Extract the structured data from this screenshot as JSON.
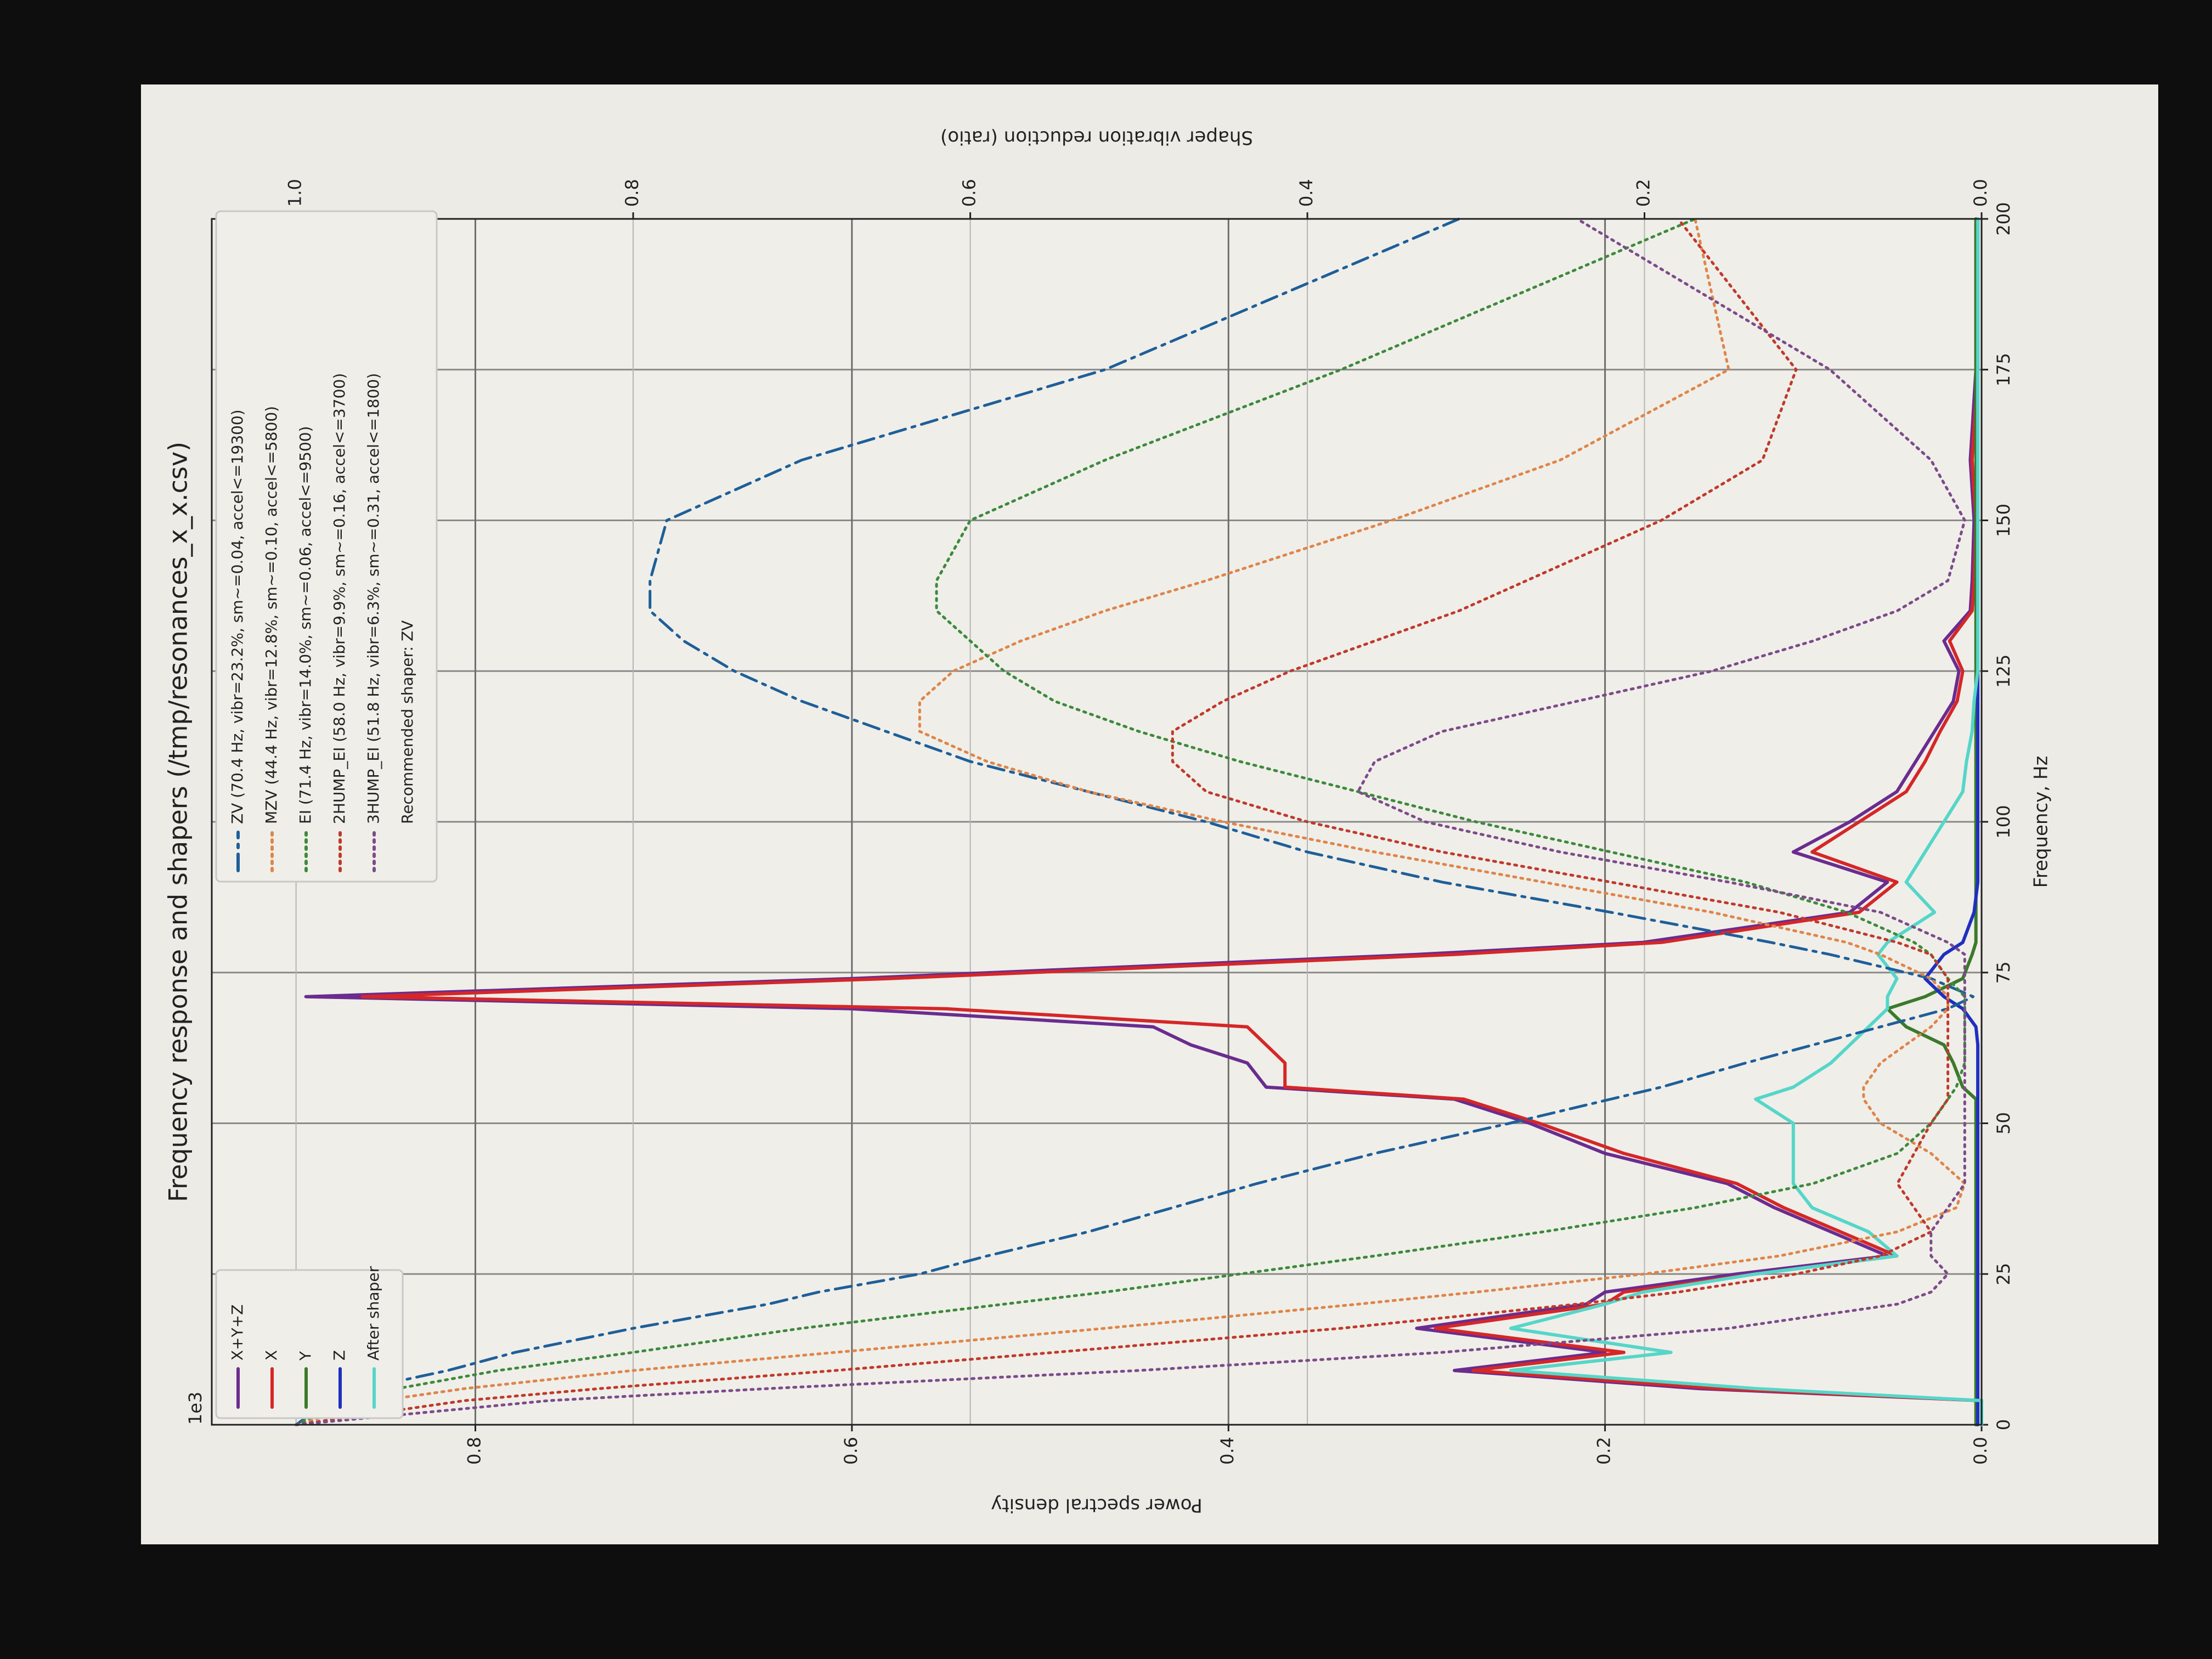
{
  "chart_data": {
    "type": "line",
    "title": "Frequency response and shapers (/tmp/resonances_x_x.csv)",
    "x_label": "Frequency, Hz",
    "y_label": "Power spectral density",
    "y2_label": "Shaper vibration reduction (ratio)",
    "offset_label": "1e3",
    "recommended": "Recommended shaper: ZV",
    "grid": true,
    "xlim": [
      0,
      200
    ],
    "xticks": [
      0,
      25,
      50,
      75,
      100,
      125,
      150,
      175,
      200
    ],
    "ylim": [
      0,
      0.94
    ],
    "yticks": [
      {
        "value": 0,
        "label": "0.0"
      },
      0.2,
      0.4,
      0.6,
      0.8
    ],
    "y2lim": [
      0,
      1.05
    ],
    "y2ticks": [
      {
        "value": 0,
        "label": "0.0"
      },
      0.2,
      0.4,
      0.6,
      0.8,
      {
        "value": 1,
        "label": "1.0"
      }
    ],
    "x": [
      0,
      4,
      6,
      9,
      12,
      16,
      20,
      22,
      25,
      28,
      32,
      36,
      40,
      45,
      50,
      54,
      56,
      60,
      63,
      66,
      69,
      71,
      74,
      78,
      80,
      85,
      90,
      95,
      100,
      105,
      110,
      115,
      120,
      125,
      130,
      135,
      140,
      150,
      160,
      175,
      200
    ],
    "series": [
      {
        "name": "X+Y+Z",
        "color": "#6a2c8e",
        "style": "solid",
        "legend": "psd",
        "values": [
          0,
          0,
          0.15,
          0.28,
          0.2,
          0.3,
          0.21,
          0.2,
          0.13,
          0.05,
          0.08,
          0.11,
          0.135,
          0.2,
          0.24,
          0.28,
          0.38,
          0.39,
          0.42,
          0.44,
          0.6,
          0.89,
          0.6,
          0.3,
          0.18,
          0.07,
          0.05,
          0.1,
          0.07,
          0.045,
          0.035,
          0.025,
          0.015,
          0.012,
          0.02,
          0.006,
          0.005,
          0.004,
          0.006,
          0.003,
          0.003
        ]
      },
      {
        "name": "X",
        "color": "#d62728",
        "style": "solid",
        "legend": "psd",
        "values": [
          0,
          0,
          0.14,
          0.27,
          0.19,
          0.29,
          0.2,
          0.19,
          0.12,
          0.045,
          0.075,
          0.105,
          0.13,
          0.19,
          0.235,
          0.275,
          0.37,
          0.37,
          0.38,
          0.39,
          0.55,
          0.86,
          0.58,
          0.28,
          0.17,
          0.065,
          0.045,
          0.09,
          0.065,
          0.04,
          0.03,
          0.022,
          0.013,
          0.01,
          0.017,
          0.005,
          0.004,
          0.003,
          0.005,
          0.002,
          0.002
        ]
      },
      {
        "name": "Y",
        "color": "#3b7a2a",
        "style": "solid",
        "legend": "psd",
        "values": [
          0.003,
          0.003,
          0.003,
          0.003,
          0.003,
          0.003,
          0.003,
          0.003,
          0.003,
          0.003,
          0.003,
          0.003,
          0.003,
          0.003,
          0.003,
          0.003,
          0.01,
          0.015,
          0.02,
          0.04,
          0.05,
          0.03,
          0.01,
          0.005,
          0.003,
          0.003,
          0.003,
          0.003,
          0.003,
          0.003,
          0.003,
          0.003,
          0.003,
          0.003,
          0.003,
          0.003,
          0.003,
          0.003,
          0.003,
          0.003,
          0.003
        ]
      },
      {
        "name": "Z",
        "color": "#1f2fc0",
        "style": "solid",
        "legend": "psd",
        "values": [
          0.002,
          0.002,
          0.002,
          0.002,
          0.002,
          0.002,
          0.002,
          0.002,
          0.002,
          0.002,
          0.002,
          0.002,
          0.002,
          0.002,
          0.002,
          0.002,
          0.002,
          0.002,
          0.002,
          0.003,
          0.01,
          0.02,
          0.03,
          0.02,
          0.01,
          0.004,
          0.002,
          0.002,
          0.002,
          0.002,
          0.002,
          0.002,
          0.002,
          0.002,
          0.002,
          0.002,
          0.002,
          0.002,
          0.002,
          0.002,
          0.002
        ]
      },
      {
        "name": "After shaper",
        "color": "#55d6c9",
        "style": "solid",
        "legend": "psd",
        "values": [
          0,
          0,
          0.12,
          0.25,
          0.165,
          0.25,
          0.2,
          0.18,
          0.12,
          0.045,
          0.06,
          0.09,
          0.1,
          0.1,
          0.1,
          0.12,
          0.1,
          0.08,
          0.07,
          0.06,
          0.05,
          0.05,
          0.045,
          0.055,
          0.05,
          0.025,
          0.04,
          0.03,
          0.02,
          0.01,
          0.008,
          0.005,
          0.004,
          0.002,
          0.002,
          0.002,
          0.002,
          0.002,
          0.002,
          0.002,
          0.002
        ]
      },
      {
        "name": "ZV (70.4 Hz, vibr=23.2%, sm~=0.04, accel<=19300)",
        "color": "#1f5f99",
        "style": "dashdot",
        "axis": "y2",
        "legend": "shaper",
        "values": [
          1,
          0.98,
          0.96,
          0.91,
          0.87,
          0.8,
          0.72,
          0.69,
          0.63,
          0.59,
          0.53,
          0.48,
          0.43,
          0.36,
          0.28,
          0.22,
          0.19,
          0.14,
          0.1,
          0.06,
          0.02,
          0.005,
          0.03,
          0.09,
          0.125,
          0.22,
          0.32,
          0.4,
          0.46,
          0.53,
          0.6,
          0.65,
          0.7,
          0.74,
          0.77,
          0.79,
          0.79,
          0.78,
          0.7,
          0.52,
          0.31
        ]
      },
      {
        "name": "MZV (44.4 Hz, vibr=12.8%, sm~=0.10, accel<=5800)",
        "color": "#e0854a",
        "style": "dotted",
        "axis": "y2",
        "legend": "shaper",
        "values": [
          1,
          0.95,
          0.9,
          0.8,
          0.68,
          0.52,
          0.37,
          0.3,
          0.2,
          0.12,
          0.05,
          0.015,
          0.01,
          0.03,
          0.06,
          0.07,
          0.07,
          0.06,
          0.045,
          0.03,
          0.02,
          0.02,
          0.03,
          0.06,
          0.08,
          0.16,
          0.26,
          0.36,
          0.45,
          0.53,
          0.59,
          0.63,
          0.63,
          0.61,
          0.57,
          0.52,
          0.46,
          0.35,
          0.25,
          0.15,
          0.17
        ]
      },
      {
        "name": "EI (71.4 Hz, vibr=14.0%, sm~=0.06, accel<=9500)",
        "color": "#3d8a3d",
        "style": "dotted",
        "axis": "y2",
        "legend": "shaper",
        "values": [
          1,
          0.97,
          0.94,
          0.88,
          0.8,
          0.7,
          0.58,
          0.52,
          0.44,
          0.36,
          0.26,
          0.17,
          0.1,
          0.05,
          0.03,
          0.02,
          0.015,
          0.01,
          0.01,
          0.01,
          0.01,
          0.01,
          0.02,
          0.03,
          0.04,
          0.08,
          0.14,
          0.22,
          0.3,
          0.37,
          0.44,
          0.5,
          0.55,
          0.58,
          0.6,
          0.62,
          0.62,
          0.6,
          0.52,
          0.38,
          0.17
        ]
      },
      {
        "name": "2HUMP_EI (58.0 Hz, vibr=9.9%, sm~=0.16, accel<=3700)",
        "color": "#c0392b",
        "style": "dotted",
        "axis": "y2",
        "legend": "shaper",
        "values": [
          1,
          0.9,
          0.82,
          0.68,
          0.55,
          0.38,
          0.24,
          0.18,
          0.11,
          0.06,
          0.03,
          0.04,
          0.05,
          0.04,
          0.03,
          0.02,
          0.02,
          0.02,
          0.02,
          0.02,
          0.02,
          0.02,
          0.02,
          0.03,
          0.05,
          0.12,
          0.22,
          0.32,
          0.4,
          0.46,
          0.48,
          0.48,
          0.45,
          0.41,
          0.36,
          0.31,
          0.27,
          0.19,
          0.13,
          0.11,
          0.18
        ]
      },
      {
        "name": "3HUMP_EI (51.8 Hz, vibr=6.3%, sm~=0.31, accel<=1800)",
        "color": "#7d4a8a",
        "style": "dotted",
        "axis": "y2",
        "legend": "shaper",
        "values": [
          1,
          0.85,
          0.72,
          0.5,
          0.32,
          0.15,
          0.05,
          0.03,
          0.02,
          0.03,
          0.03,
          0.02,
          0.01,
          0.01,
          0.01,
          0.01,
          0.01,
          0.01,
          0.01,
          0.01,
          0.01,
          0.01,
          0.01,
          0.01,
          0.02,
          0.06,
          0.15,
          0.25,
          0.33,
          0.37,
          0.36,
          0.32,
          0.24,
          0.16,
          0.1,
          0.05,
          0.02,
          0.01,
          0.03,
          0.09,
          0.24
        ]
      }
    ]
  }
}
